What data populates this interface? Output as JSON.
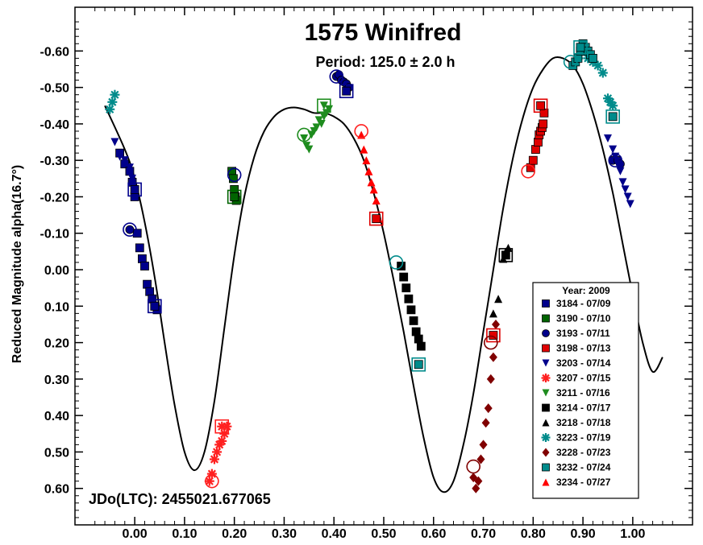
{
  "chart_data": {
    "type": "scatter",
    "title": "1575 Winifred",
    "subtitle": "Period: 125.0 ± 2.0 h",
    "ylabel": "Reduced Magnitude alpha(16.7°)",
    "xlabel": "",
    "annotation": "JDo(LTC): 2455021.677065",
    "xlim": [
      -0.12,
      1.12
    ],
    "ylim": [
      0.7,
      -0.72
    ],
    "y_inverted": true,
    "x_ticks": [
      "0.00",
      "0.10",
      "0.20",
      "0.30",
      "0.40",
      "0.50",
      "0.60",
      "0.70",
      "0.80",
      "0.90",
      "1.00"
    ],
    "y_ticks": [
      "-0.60",
      "-0.50",
      "-0.40",
      "-0.30",
      "-0.20",
      "-0.10",
      "0.00",
      "0.10",
      "0.20",
      "0.30",
      "0.40",
      "0.50",
      "0.60"
    ],
    "legend_title": "Year: 2009",
    "legend_position": "lower-right",
    "fit_curve": {
      "type": "line",
      "x": [
        -0.06,
        -0.02,
        0.0,
        0.02,
        0.04,
        0.06,
        0.08,
        0.1,
        0.12,
        0.14,
        0.16,
        0.18,
        0.2,
        0.22,
        0.24,
        0.26,
        0.28,
        0.3,
        0.32,
        0.34,
        0.36,
        0.38,
        0.4,
        0.42,
        0.44,
        0.46,
        0.48,
        0.5,
        0.52,
        0.54,
        0.56,
        0.58,
        0.6,
        0.62,
        0.64,
        0.66,
        0.68,
        0.7,
        0.72,
        0.74,
        0.76,
        0.78,
        0.8,
        0.82,
        0.84,
        0.86,
        0.88,
        0.9,
        0.92,
        0.94,
        0.96,
        0.98,
        1.0,
        1.02,
        1.04,
        1.06
      ],
      "y": [
        -0.45,
        -0.33,
        -0.25,
        -0.13,
        0.02,
        0.2,
        0.37,
        0.5,
        0.55,
        0.5,
        0.36,
        0.16,
        -0.04,
        -0.2,
        -0.31,
        -0.38,
        -0.42,
        -0.44,
        -0.445,
        -0.44,
        -0.43,
        -0.43,
        -0.42,
        -0.4,
        -0.36,
        -0.3,
        -0.21,
        -0.1,
        0.03,
        0.17,
        0.32,
        0.46,
        0.57,
        0.61,
        0.58,
        0.48,
        0.34,
        0.17,
        0.0,
        -0.17,
        -0.31,
        -0.42,
        -0.5,
        -0.55,
        -0.58,
        -0.58,
        -0.56,
        -0.51,
        -0.43,
        -0.33,
        -0.21,
        -0.07,
        0.07,
        0.2,
        0.28,
        0.24
      ]
    },
    "series": [
      {
        "name": "3184 - 07/09",
        "marker": "square",
        "color": "#00008b",
        "x": [
          -0.03,
          -0.02,
          -0.01,
          -0.005,
          0.0,
          0.005,
          0.01,
          0.015,
          0.02,
          0.025,
          0.03,
          0.035,
          0.04,
          0.045
        ],
        "y": [
          -0.32,
          -0.29,
          -0.27,
          -0.24,
          -0.2,
          -0.1,
          -0.06,
          -0.03,
          -0.01,
          0.04,
          0.06,
          0.08,
          0.1,
          0.11
        ]
      },
      {
        "name": "3190 - 07/10",
        "marker": "square",
        "color": "#006400",
        "x": [
          0.195,
          0.198,
          0.2,
          0.202,
          0.204
        ],
        "y": [
          -0.27,
          -0.25,
          -0.22,
          -0.2,
          -0.19
        ]
      },
      {
        "name": "3193 - 07/11",
        "marker": "circle",
        "color": "#00008b",
        "x": [
          -0.01,
          0.405,
          0.41,
          0.415,
          0.42,
          0.425,
          0.43,
          0.96,
          0.97,
          0.975
        ],
        "y": [
          -0.11,
          -0.53,
          -0.535,
          -0.52,
          -0.515,
          -0.51,
          -0.5,
          -0.3,
          -0.3,
          -0.29
        ]
      },
      {
        "name": "3198 - 07/13",
        "marker": "square",
        "color": "#e00000",
        "x": [
          0.795,
          0.8,
          0.805,
          0.81,
          0.812,
          0.815,
          0.818,
          0.82,
          0.822
        ],
        "y": [
          -0.28,
          -0.3,
          -0.33,
          -0.35,
          -0.37,
          -0.38,
          -0.39,
          -0.4,
          -0.43
        ]
      },
      {
        "name": "3203 - 07/14",
        "marker": "tri-down",
        "color": "#00008b",
        "x": [
          -0.04,
          -0.03,
          -0.02,
          -0.01,
          -0.005,
          0.95,
          0.96,
          0.965,
          0.97,
          0.975,
          0.98,
          0.985,
          0.99,
          0.995
        ],
        "y": [
          -0.35,
          -0.31,
          -0.3,
          -0.28,
          -0.25,
          -0.36,
          -0.33,
          -0.31,
          -0.29,
          -0.27,
          -0.24,
          -0.22,
          -0.2,
          -0.18
        ]
      },
      {
        "name": "3207 - 07/15",
        "marker": "asterisk",
        "color": "#ff2020",
        "x": [
          0.15,
          0.155,
          0.16,
          0.165,
          0.17,
          0.175,
          0.18,
          0.185
        ],
        "y": [
          0.58,
          0.56,
          0.52,
          0.5,
          0.48,
          0.47,
          0.45,
          0.43
        ]
      },
      {
        "name": "3211 - 07/16",
        "marker": "tri-down",
        "color": "#1e8c1e",
        "x": [
          0.34,
          0.345,
          0.35,
          0.355,
          0.36,
          0.365,
          0.37,
          0.375,
          0.38,
          0.385,
          0.39
        ],
        "y": [
          -0.36,
          -0.34,
          -0.33,
          -0.37,
          -0.38,
          -0.39,
          -0.41,
          -0.4,
          -0.42,
          -0.43,
          -0.44
        ]
      },
      {
        "name": "3214 - 07/17",
        "marker": "square",
        "color": "#000000",
        "x": [
          0.535,
          0.54,
          0.545,
          0.55,
          0.555,
          0.56,
          0.565,
          0.57,
          0.575
        ],
        "y": [
          -0.01,
          0.02,
          0.05,
          0.08,
          0.11,
          0.14,
          0.17,
          0.19,
          0.21
        ]
      },
      {
        "name": "3218 - 07/18",
        "marker": "tri-up",
        "color": "#000000",
        "x": [
          0.72,
          0.73,
          0.74,
          0.745,
          0.75
        ],
        "y": [
          0.12,
          0.08,
          -0.03,
          -0.05,
          -0.06
        ]
      },
      {
        "name": "3223 - 07/19",
        "marker": "asterisk",
        "color": "#008b8b",
        "x": [
          -0.05,
          -0.045,
          -0.04,
          0.89,
          0.9,
          0.91,
          0.92,
          0.93,
          0.94,
          0.95,
          0.955,
          0.96
        ],
        "y": [
          -0.44,
          -0.46,
          -0.48,
          -0.58,
          -0.6,
          -0.58,
          -0.57,
          -0.56,
          -0.54,
          -0.47,
          -0.46,
          -0.45
        ]
      },
      {
        "name": "3228 - 07/23",
        "marker": "diamond",
        "color": "#800000",
        "x": [
          0.68,
          0.685,
          0.69,
          0.695,
          0.7,
          0.705,
          0.71,
          0.715,
          0.72,
          0.725
        ],
        "y": [
          0.57,
          0.6,
          0.58,
          0.52,
          0.48,
          0.42,
          0.38,
          0.3,
          0.24,
          0.15
        ]
      },
      {
        "name": "3232 - 07/24",
        "marker": "square",
        "color": "#008b8b",
        "x": [
          0.88,
          0.885,
          0.89,
          0.895,
          0.9,
          0.905,
          0.91,
          0.915,
          0.92
        ],
        "y": [
          -0.56,
          -0.57,
          -0.58,
          -0.6,
          -0.62,
          -0.61,
          -0.6,
          -0.59,
          -0.58
        ]
      },
      {
        "name": "3234 - 07/27",
        "marker": "tri-up",
        "color": "#ff0000",
        "x": [
          0.455,
          0.46,
          0.465,
          0.47,
          0.475,
          0.48,
          0.485,
          0.49
        ],
        "y": [
          -0.37,
          -0.33,
          -0.3,
          -0.27,
          -0.24,
          -0.22,
          -0.19,
          -0.14
        ]
      }
    ],
    "highlighted_points": [
      {
        "series": 2,
        "shape": "circle",
        "x": 0.2,
        "y": -0.26
      },
      {
        "series": 1,
        "shape": "square",
        "x": 0.2,
        "y": -0.2
      },
      {
        "series": 0,
        "shape": "square",
        "x": 0.0,
        "y": -0.22
      },
      {
        "series": 2,
        "shape": "circle",
        "x": -0.01,
        "y": -0.11
      },
      {
        "series": 0,
        "shape": "square",
        "x": 0.04,
        "y": 0.1
      },
      {
        "series": 2,
        "shape": "circle",
        "x": 0.405,
        "y": -0.53
      },
      {
        "series": 0,
        "shape": "square",
        "x": 0.425,
        "y": -0.49
      },
      {
        "series": 6,
        "shape": "square",
        "x": 0.38,
        "y": -0.45
      },
      {
        "series": 6,
        "shape": "circle",
        "x": 0.34,
        "y": -0.37
      },
      {
        "series": 5,
        "shape": "circle",
        "x": 0.455,
        "y": -0.38
      },
      {
        "series": 3,
        "shape": "square",
        "x": 0.485,
        "y": -0.14
      },
      {
        "series": 5,
        "shape": "square",
        "x": 0.175,
        "y": 0.43
      },
      {
        "series": 5,
        "shape": "circle",
        "x": 0.155,
        "y": 0.58
      },
      {
        "series": 11,
        "shape": "circle",
        "x": 0.525,
        "y": -0.02
      },
      {
        "series": 11,
        "shape": "square",
        "x": 0.57,
        "y": 0.26
      },
      {
        "series": 10,
        "shape": "circle",
        "x": 0.68,
        "y": 0.54
      },
      {
        "series": 3,
        "shape": "square",
        "x": 0.72,
        "y": 0.18
      },
      {
        "series": 10,
        "shape": "circle",
        "x": 0.715,
        "y": 0.2
      },
      {
        "series": 3,
        "shape": "square",
        "x": 0.815,
        "y": -0.45
      },
      {
        "series": 5,
        "shape": "circle",
        "x": 0.79,
        "y": -0.27
      },
      {
        "series": 7,
        "shape": "square",
        "x": 0.745,
        "y": -0.04
      },
      {
        "series": 11,
        "shape": "circle",
        "x": 0.875,
        "y": -0.57
      },
      {
        "series": 11,
        "shape": "square",
        "x": 0.895,
        "y": -0.61
      },
      {
        "series": 11,
        "shape": "square",
        "x": 0.96,
        "y": -0.42
      },
      {
        "series": 2,
        "shape": "circle",
        "x": 0.965,
        "y": -0.3
      }
    ]
  }
}
